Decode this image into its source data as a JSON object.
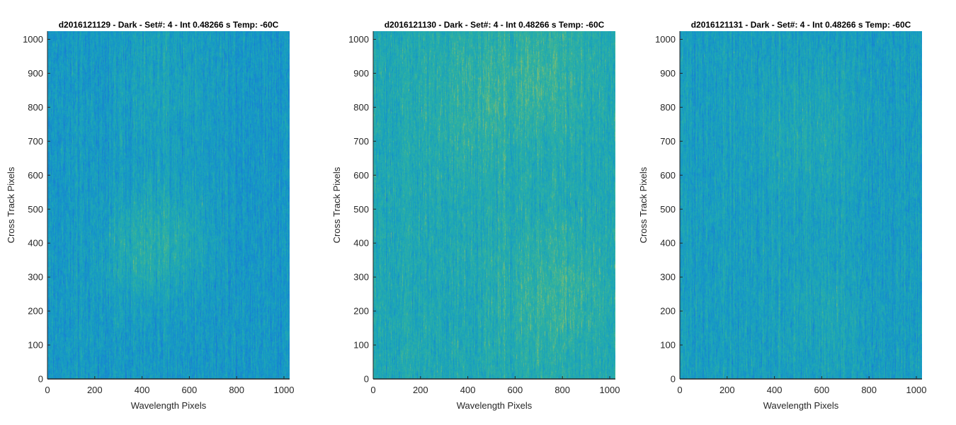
{
  "figure": {
    "background": "#ffffff",
    "colormap": "parula",
    "colormap_stops": [
      "#1a7ad6",
      "#1596c8",
      "#1fa8b4",
      "#36b39a",
      "#8cbd6c"
    ],
    "axis_color": "#262626"
  },
  "chart_data": [
    {
      "type": "heatmap",
      "title": "d2016121129 - Dark - Set#: 4 - Int 0.48266 s Temp: -60C",
      "xlabel": "Wavelength Pixels",
      "ylabel": "Cross Track Pixels",
      "xlim": [
        0,
        1024
      ],
      "ylim": [
        0,
        1024
      ],
      "xticks": [
        0,
        200,
        400,
        600,
        800,
        1000
      ],
      "yticks": [
        0,
        100,
        200,
        300,
        400,
        500,
        600,
        700,
        800,
        900,
        1000
      ],
      "grid": false,
      "mean_level": 0.3,
      "hotspots": [
        {
          "x": 380,
          "y": 380,
          "sigma": 110,
          "amp": 0.22
        },
        {
          "x": 560,
          "y": 420,
          "sigma": 120,
          "amp": 0.18
        },
        {
          "x": 500,
          "y": 880,
          "sigma": 160,
          "amp": 0.12
        }
      ]
    },
    {
      "type": "heatmap",
      "title": "d2016121130 - Dark - Set#: 4 - Int 0.48266 s Temp: -60C",
      "xlabel": "Wavelength Pixels",
      "ylabel": "Cross Track Pixels",
      "xlim": [
        0,
        1024
      ],
      "ylim": [
        0,
        1024
      ],
      "xticks": [
        0,
        200,
        400,
        600,
        800,
        1000
      ],
      "yticks": [
        0,
        100,
        200,
        300,
        400,
        500,
        600,
        700,
        800,
        900,
        1000
      ],
      "grid": false,
      "mean_level": 0.5,
      "hotspots": [
        {
          "x": 430,
          "y": 820,
          "sigma": 160,
          "amp": 0.15
        },
        {
          "x": 760,
          "y": 250,
          "sigma": 150,
          "amp": 0.22
        },
        {
          "x": 740,
          "y": 900,
          "sigma": 140,
          "amp": 0.2
        }
      ]
    },
    {
      "type": "heatmap",
      "title": "d2016121131 - Dark - Set#: 4 - Int 0.48266 s Temp: -60C",
      "xlabel": "Wavelength Pixels",
      "ylabel": "Cross Track Pixels",
      "xlim": [
        0,
        1024
      ],
      "ylim": [
        0,
        1024
      ],
      "xticks": [
        0,
        200,
        400,
        600,
        800,
        1000
      ],
      "yticks": [
        0,
        100,
        200,
        300,
        400,
        500,
        600,
        700,
        800,
        900,
        1000
      ],
      "grid": false,
      "mean_level": 0.36,
      "hotspots": [
        {
          "x": 560,
          "y": 720,
          "sigma": 150,
          "amp": 0.15
        },
        {
          "x": 620,
          "y": 200,
          "sigma": 130,
          "amp": 0.12
        }
      ]
    }
  ]
}
